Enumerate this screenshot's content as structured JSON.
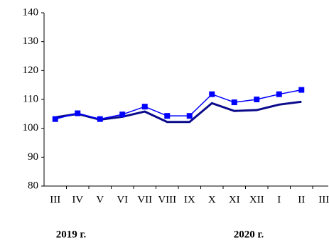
{
  "chart_data": {
    "type": "line",
    "categories": [
      "III",
      "IV",
      "V",
      "VI",
      "VII",
      "VIII",
      "IX",
      "X",
      "XI",
      "XII",
      "I",
      "II",
      "III"
    ],
    "series": [
      {
        "color": "#0a0a8c",
        "values": [
          103.8,
          105,
          103,
          104,
          105.8,
          102.2,
          102.2,
          108.7,
          106,
          106.3,
          108.2,
          109.2,
          null
        ]
      },
      {
        "color": "#0000ff",
        "marker": "square",
        "values": [
          103.2,
          105.2,
          103.2,
          104.8,
          107.5,
          104.3,
          104.3,
          111.8,
          109,
          110,
          111.8,
          113.3,
          null
        ]
      }
    ],
    "ylim": [
      80,
      140
    ],
    "yticks": [
      80,
      90,
      100,
      110,
      120,
      130,
      140
    ],
    "annotations": [
      "2019 г.",
      "2020 г."
    ]
  }
}
